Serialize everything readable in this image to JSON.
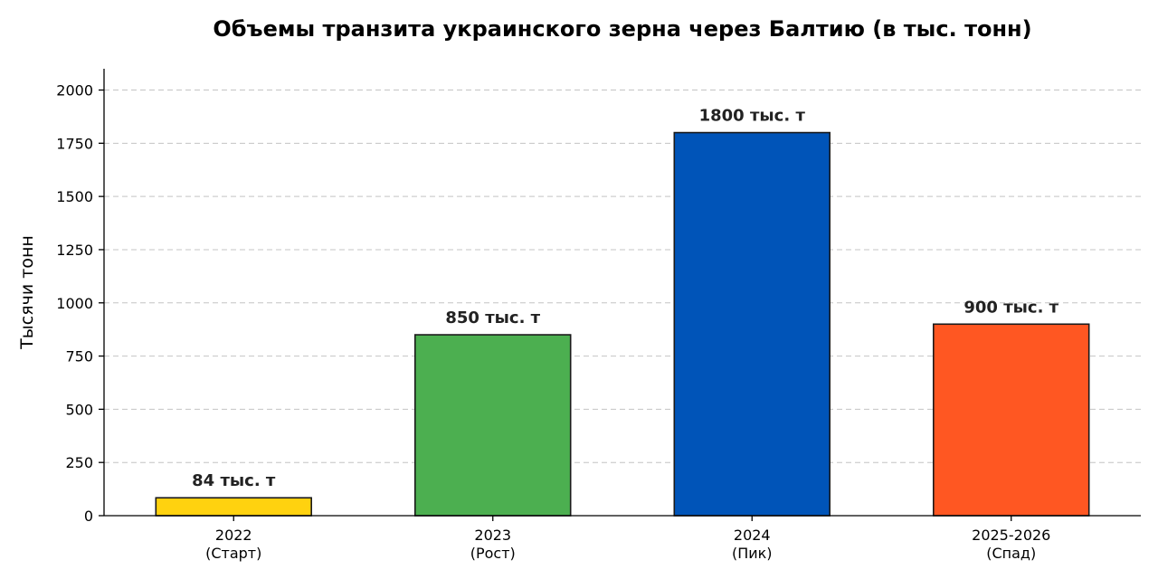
{
  "chart_data": {
    "type": "bar",
    "title": "Объемы транзита украинского зерна через Балтию (в тыс. тонн)",
    "xlabel": "",
    "ylabel": "Тысячи тонн",
    "ylim": [
      0,
      2100
    ],
    "yticks": [
      "0",
      "250",
      "500",
      "750",
      "1000",
      "1250",
      "1500",
      "1750",
      "2000"
    ],
    "grid": "y-dashed",
    "categories": [
      {
        "year": "2022",
        "phase": "(Старт)"
      },
      {
        "year": "2023",
        "phase": "(Рост)"
      },
      {
        "year": "2024",
        "phase": "(Пик)"
      },
      {
        "year": "2025-2026",
        "phase": "(Спад)"
      }
    ],
    "values": [
      84,
      850,
      1800,
      900
    ],
    "data_labels": [
      "84 тыс. т",
      "850 тыс. т",
      "1800 тыс. т",
      "900 тыс. т"
    ],
    "colors": [
      "#FFD20F",
      "#4CAF50",
      "#0054B8",
      "#FF5722"
    ]
  }
}
